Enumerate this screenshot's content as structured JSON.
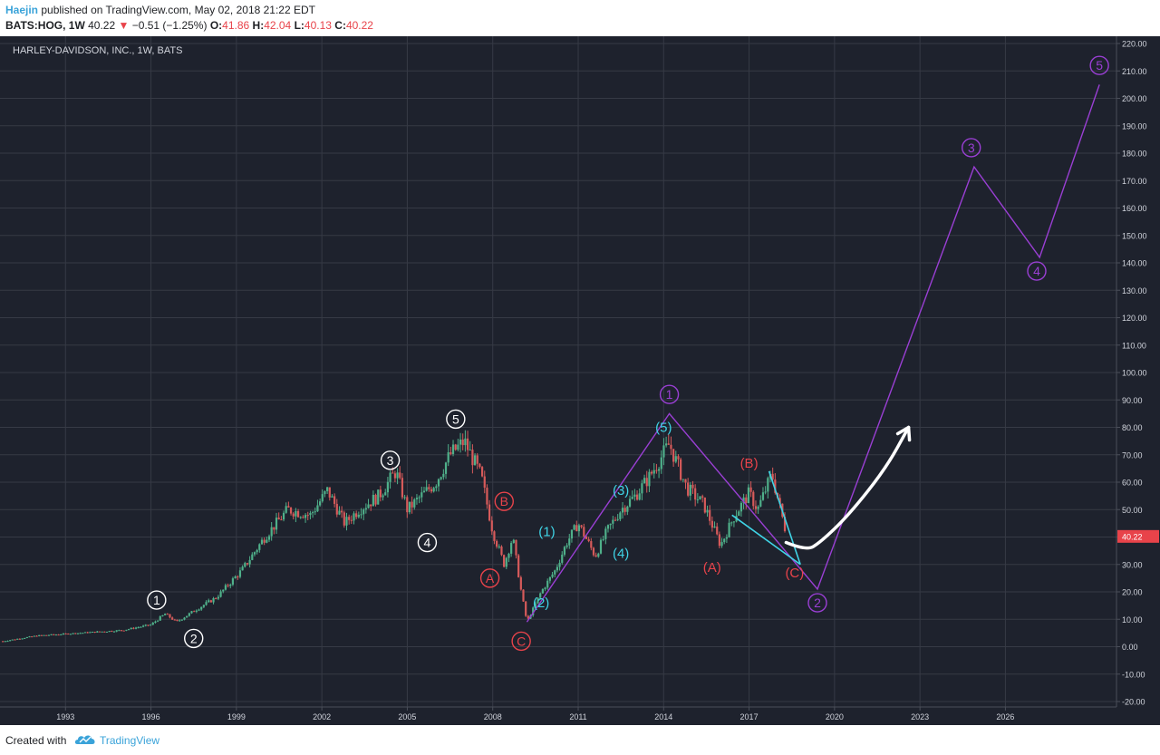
{
  "header": {
    "author": "Haejin",
    "published_text": "published on TradingView.com, May 02, 2018 21:22 EDT",
    "symbol": "BATS:HOG, 1W",
    "last_price": "40.22",
    "down_arrow_icon": "triangle-down",
    "change": "−0.51 (−1.25%)",
    "open_label": "O:",
    "open": "41.86",
    "high_label": "H:",
    "high": "42.04",
    "low_label": "L:",
    "low": "40.13",
    "close_label": "C:",
    "close": "40.22"
  },
  "footer": {
    "created_with": "Created with",
    "brand": "TradingView",
    "logo_icon": "tradingview-cloud-logo"
  },
  "colors": {
    "background": "#1e222d",
    "grid": "#363a45",
    "candle_up": "#4fb08a",
    "candle_down": "#d65a5a",
    "purple": "#9a3fd4",
    "cyan": "#3fd4e6",
    "red_label": "#e8434a",
    "white": "#ffffff",
    "price_tag": "#e8434a"
  },
  "chart_data": {
    "type": "candlestick",
    "title": "HARLEY-DAVIDSON, INC., 1W, BATS",
    "ylim": [
      -20,
      220
    ],
    "y_ticks": [
      "220.00",
      "210.00",
      "200.00",
      "190.00",
      "180.00",
      "170.00",
      "160.00",
      "150.00",
      "140.00",
      "130.00",
      "120.00",
      "110.00",
      "100.00",
      "90.00",
      "80.00",
      "70.00",
      "60.00",
      "50.00",
      "40.00",
      "30.00",
      "20.00",
      "10.00",
      "0.00",
      "-10.00",
      "-20.00"
    ],
    "x_ticks": [
      "1993",
      "1996",
      "1999",
      "2002",
      "2005",
      "2008",
      "2011",
      "2014",
      "2017",
      "2020",
      "2023",
      "2026"
    ],
    "xlim": [
      1990.7,
      2029.9
    ],
    "last_price_tag": "40.22",
    "price_series": {
      "x": [
        1990.8,
        1992.0,
        1993.5,
        1995.0,
        1996.0,
        1996.5,
        1996.9,
        1997.5,
        1998.3,
        1999.2,
        2000.0,
        2000.8,
        2001.6,
        2002.2,
        2002.8,
        2003.3,
        2004.0,
        2004.6,
        2005.0,
        2005.5,
        2006.0,
        2006.5,
        2007.0,
        2007.6,
        2008.0,
        2008.4,
        2008.7,
        2009.0,
        2009.2,
        2009.7,
        2010.2,
        2010.6,
        2011.0,
        2011.6,
        2012.0,
        2012.5,
        2013.0,
        2013.5,
        2014.2,
        2014.8,
        2015.4,
        2016.0,
        2016.5,
        2017.0,
        2017.3,
        2017.8,
        2018.1,
        2018.33
      ],
      "y": [
        2,
        4,
        5,
        6,
        8,
        12,
        9,
        13,
        18,
        28,
        40,
        50,
        48,
        57,
        45,
        50,
        55,
        64,
        50,
        55,
        60,
        70,
        75,
        62,
        42,
        30,
        40,
        20,
        9,
        20,
        28,
        38,
        45,
        33,
        42,
        50,
        55,
        62,
        74,
        58,
        52,
        37,
        48,
        56,
        50,
        63,
        50,
        40.22
      ]
    },
    "wave_labels": [
      {
        "text": "1",
        "x": 1996.2,
        "y": 17,
        "color": "white",
        "circled": true
      },
      {
        "text": "2",
        "x": 1997.5,
        "y": 3,
        "color": "white",
        "circled": true
      },
      {
        "text": "3",
        "x": 2004.4,
        "y": 68,
        "color": "white",
        "circled": true
      },
      {
        "text": "4",
        "x": 2005.7,
        "y": 38,
        "color": "white",
        "circled": true
      },
      {
        "text": "5",
        "x": 2006.7,
        "y": 83,
        "color": "white",
        "circled": true
      },
      {
        "text": "A",
        "x": 2007.9,
        "y": 25,
        "color": "red",
        "circled": true
      },
      {
        "text": "B",
        "x": 2008.4,
        "y": 53,
        "color": "red",
        "circled": true
      },
      {
        "text": "C",
        "x": 2009.0,
        "y": 2,
        "color": "red",
        "circled": true
      },
      {
        "text": "(1)",
        "x": 2009.9,
        "y": 42,
        "color": "cyan",
        "circled": false
      },
      {
        "text": "(2)",
        "x": 2009.7,
        "y": 16,
        "color": "cyan",
        "circled": false
      },
      {
        "text": "(3)",
        "x": 2012.5,
        "y": 57,
        "color": "cyan",
        "circled": false
      },
      {
        "text": "(4)",
        "x": 2012.5,
        "y": 34,
        "color": "cyan",
        "circled": false
      },
      {
        "text": "(5)",
        "x": 2014.0,
        "y": 80,
        "color": "cyan",
        "circled": false
      },
      {
        "text": "(A)",
        "x": 2015.7,
        "y": 29,
        "color": "red",
        "circled": false
      },
      {
        "text": "(B)",
        "x": 2017.0,
        "y": 67,
        "color": "red",
        "circled": false
      },
      {
        "text": "(C)",
        "x": 2018.6,
        "y": 27,
        "color": "red",
        "circled": false
      },
      {
        "text": "1",
        "x": 2014.2,
        "y": 92,
        "color": "purple",
        "circled": true
      },
      {
        "text": "2",
        "x": 2019.4,
        "y": 16,
        "color": "purple",
        "circled": true
      },
      {
        "text": "3",
        "x": 2024.8,
        "y": 182,
        "color": "purple",
        "circled": true
      },
      {
        "text": "4",
        "x": 2027.1,
        "y": 137,
        "color": "purple",
        "circled": true
      },
      {
        "text": "5",
        "x": 2029.3,
        "y": 212,
        "color": "purple",
        "circled": true
      }
    ],
    "purple_projection": {
      "x": [
        2009.2,
        2014.2,
        2019.4,
        2024.9,
        2027.2,
        2029.3
      ],
      "y": [
        9,
        85,
        21,
        175,
        142,
        205
      ]
    },
    "cyan_wedge": {
      "upper": {
        "x": [
          2017.7,
          2018.8
        ],
        "y": [
          64,
          30
        ]
      },
      "lower": {
        "x": [
          2016.4,
          2018.8
        ],
        "y": [
          48,
          30
        ]
      }
    },
    "white_arrow": {
      "x": [
        2018.3,
        2019.0,
        2019.5,
        2020.5,
        2021.8,
        2022.6
      ],
      "y": [
        38,
        35,
        38,
        48,
        65,
        80
      ]
    }
  }
}
